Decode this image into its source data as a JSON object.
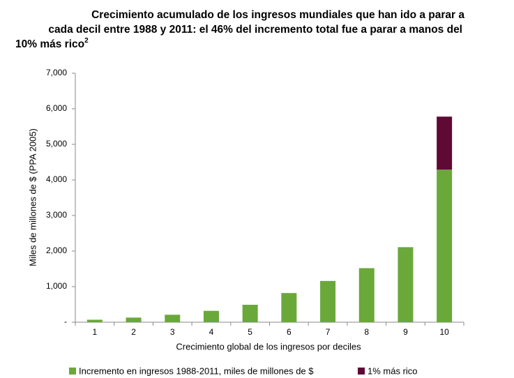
{
  "chart_data": {
    "type": "stacked_bar",
    "title_lines": [
      "Crecimiento acumulado de los ingresos mundiales que han ido a parar a",
      "cada decil entre 1988 y 2011: el 46% del incremento total fue a parar a manos del",
      "10% más rico"
    ],
    "title_superscript": "2",
    "y_label": "Miles de millones de $ (PPA 2005)",
    "x_label": "Crecimiento global de los ingresos por deciles",
    "categories": [
      "1",
      "2",
      "3",
      "4",
      "5",
      "6",
      "7",
      "8",
      "9",
      "10"
    ],
    "series": [
      {
        "name": "Incremento en ingresos 1988-2011,  miles de millones de $",
        "color": "#6aa83a",
        "values": [
          70,
          130,
          210,
          320,
          490,
          820,
          1160,
          1520,
          2110,
          4290
        ]
      },
      {
        "name": "1% más rico",
        "color": "#5e0a35",
        "values": [
          null,
          null,
          null,
          null,
          null,
          null,
          null,
          null,
          null,
          1490
        ]
      }
    ],
    "ylim": [
      0,
      7000
    ],
    "yticks": [
      {
        "value": 0,
        "label": "-"
      },
      {
        "value": 1000,
        "label": "1,000"
      },
      {
        "value": 2000,
        "label": "2,000"
      },
      {
        "value": 3000,
        "label": "3,000"
      },
      {
        "value": 4000,
        "label": "4,000"
      },
      {
        "value": 5000,
        "label": "5,000"
      },
      {
        "value": 6000,
        "label": "6,000"
      },
      {
        "value": 7000,
        "label": "7,000"
      }
    ],
    "grid": false
  }
}
